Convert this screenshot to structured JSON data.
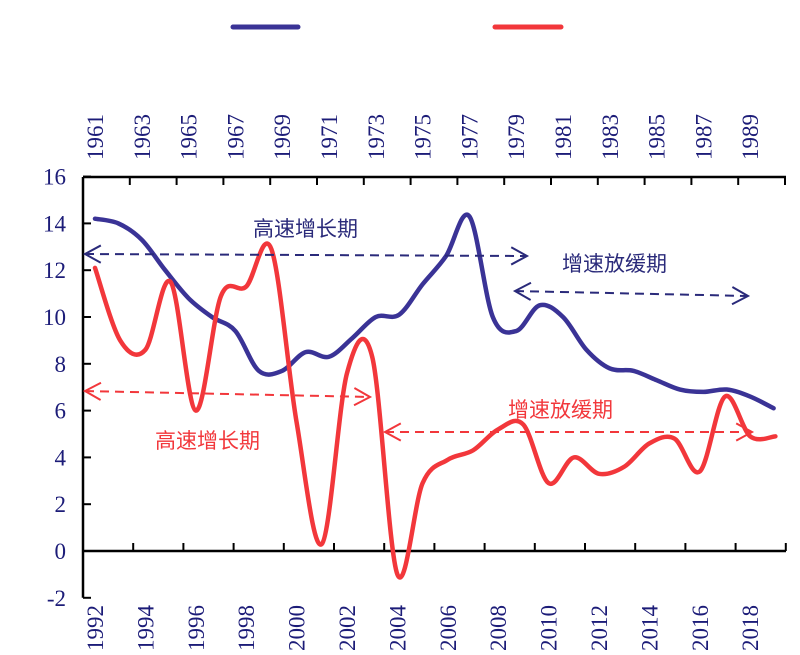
{
  "chart_data": {
    "type": "line",
    "title": "",
    "xlabel": "",
    "ylabel": "",
    "ylim": [
      -2,
      16
    ],
    "yticks": [
      -2,
      0,
      2,
      4,
      6,
      8,
      10,
      12,
      14,
      16
    ],
    "grid": false,
    "legend_placement": "top",
    "top_axis": {
      "range": [
        1961,
        1990
      ],
      "tick_labels": [
        "1961",
        "1963",
        "1965",
        "1967",
        "1969",
        "1971",
        "1973",
        "1975",
        "1977",
        "1979",
        "1981",
        "1983",
        "1985",
        "1987",
        "1989"
      ]
    },
    "bottom_axis": {
      "range": [
        1992,
        2019
      ],
      "tick_labels": [
        "1992",
        "1994",
        "1996",
        "1998",
        "2000",
        "2002",
        "2004",
        "2006",
        "2008",
        "2010",
        "2012",
        "2014",
        "2016",
        "2018"
      ]
    },
    "series": [
      {
        "axis": "top",
        "color": "#3a3396",
        "x": [
          1961,
          1962,
          1963,
          1964,
          1965,
          1966,
          1967,
          1968,
          1969,
          1970,
          1971,
          1972,
          1973,
          1974,
          1975,
          1976,
          1977,
          1978,
          1979,
          1980,
          1981,
          1982,
          1983,
          1984,
          1985,
          1986,
          1987,
          1988,
          1989,
          1990
        ],
        "values": [
          14.2,
          14.0,
          13.3,
          12.0,
          10.8,
          10.0,
          9.4,
          7.7,
          7.7,
          8.5,
          8.3,
          9.1,
          10.0,
          10.1,
          11.4,
          12.6,
          14.3,
          10.0,
          9.4,
          10.5,
          10.0,
          8.6,
          7.8,
          7.7,
          7.3,
          6.9,
          6.8,
          6.9,
          6.6,
          6.1
        ]
      },
      {
        "axis": "bottom",
        "color": "#f2373b",
        "x": [
          1992,
          1993,
          1994,
          1995,
          1996,
          1997,
          1998,
          1999,
          2000,
          2001,
          2002,
          2003,
          2004,
          2005,
          2006,
          2007,
          2008,
          2009,
          2010,
          2011,
          2012,
          2013,
          2014,
          2015,
          2016,
          2017,
          2018,
          2019
        ],
        "values": [
          12.1,
          9.0,
          8.6,
          11.5,
          6.0,
          10.9,
          11.3,
          12.9,
          5.5,
          0.3,
          7.6,
          8.3,
          -1.0,
          2.9,
          3.9,
          4.3,
          5.2,
          5.4,
          2.9,
          4.0,
          3.3,
          3.6,
          4.6,
          4.8,
          3.4,
          6.6,
          4.9,
          4.9
        ]
      }
    ],
    "annotations": [
      {
        "text": "高速增长期",
        "color": "#2a2a7a"
      },
      {
        "text": "增速放缓期",
        "color": "#2a2a7a"
      },
      {
        "text": "高速增长期",
        "color": "#f2373b"
      },
      {
        "text": "增速放缓期",
        "color": "#f2373b"
      }
    ]
  }
}
